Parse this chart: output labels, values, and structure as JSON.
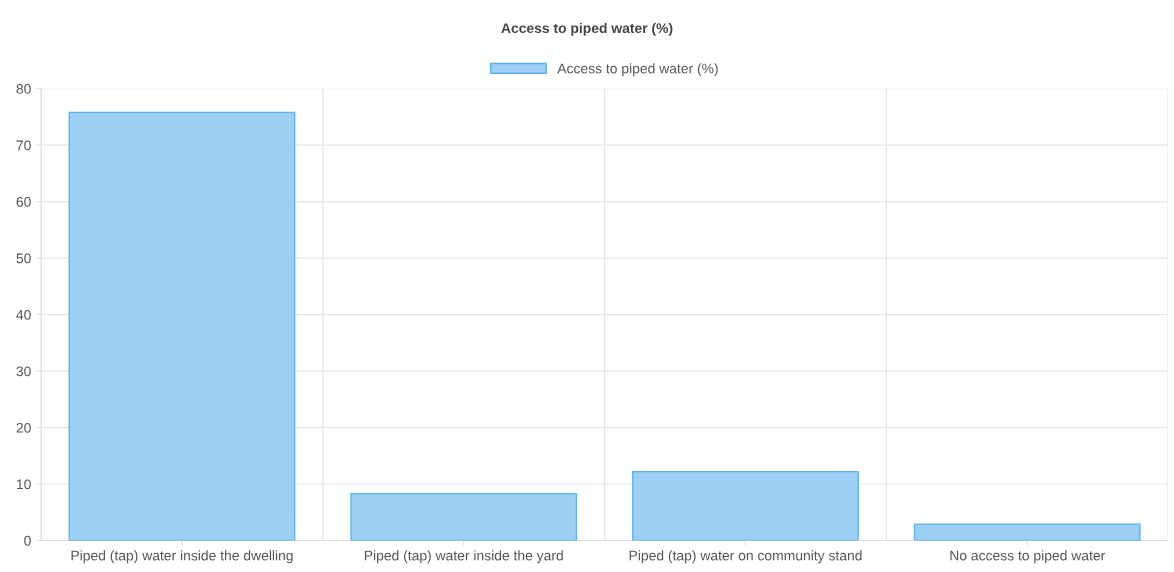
{
  "chart_data": {
    "type": "bar",
    "title": "Access to piped water (%)",
    "categories": [
      "Piped (tap) water inside the dwelling",
      "Piped (tap) water inside the yard",
      "Piped (tap) water on community stand",
      "No access to piped water"
    ],
    "series": [
      {
        "name": "Access to piped water (%)",
        "color": "#9bcff3",
        "values": [
          75.8,
          8.3,
          12.2,
          2.9
        ]
      }
    ],
    "ylim": [
      0,
      80
    ],
    "yticks": [
      0,
      10,
      20,
      30,
      40,
      50,
      60,
      70,
      80
    ],
    "grid": true,
    "legend": "top"
  }
}
